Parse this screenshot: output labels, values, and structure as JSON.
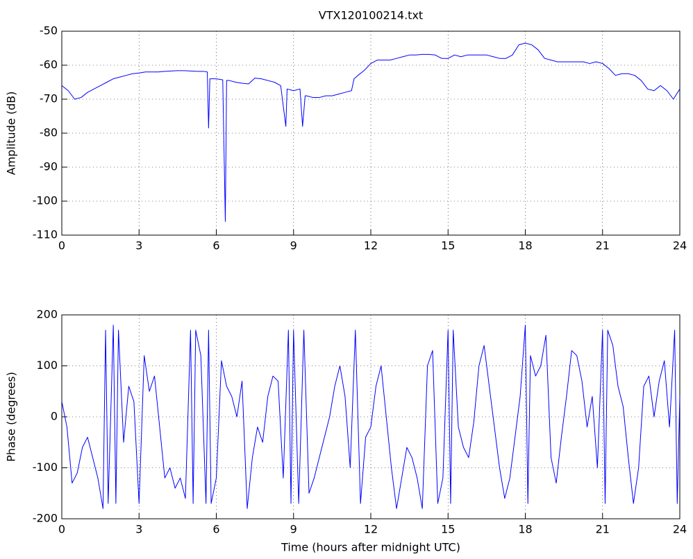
{
  "chart_data": [
    {
      "type": "line",
      "title": "VTX120100214.txt",
      "ylabel": "Amplitude (dB)",
      "xlim": [
        0,
        24
      ],
      "xticks": [
        0,
        3,
        6,
        9,
        12,
        15,
        18,
        21,
        24
      ],
      "ylim": [
        -110,
        -50
      ],
      "yticks": [
        -110,
        -100,
        -90,
        -80,
        -70,
        -60,
        -50
      ],
      "grid": true,
      "series": [
        {
          "color": "#0000ff",
          "x": [
            0,
            0.25,
            0.5,
            0.75,
            1,
            1.25,
            1.5,
            1.75,
            2,
            2.25,
            2.5,
            2.75,
            3,
            3.25,
            3.5,
            3.75,
            4,
            4.25,
            4.5,
            4.75,
            5,
            5.25,
            5.5,
            5.65,
            5.7,
            5.75,
            6,
            6.25,
            6.35,
            6.4,
            6.5,
            6.75,
            7,
            7.25,
            7.5,
            7.75,
            8,
            8.25,
            8.5,
            8.7,
            8.75,
            9,
            9.25,
            9.35,
            9.45,
            9.5,
            9.75,
            10,
            10.25,
            10.5,
            10.75,
            11,
            11.25,
            11.35,
            11.5,
            11.75,
            12,
            12.25,
            12.5,
            12.75,
            13,
            13.25,
            13.5,
            13.75,
            14,
            14.25,
            14.5,
            14.75,
            15,
            15.25,
            15.5,
            15.75,
            16,
            16.25,
            16.5,
            16.75,
            17,
            17.25,
            17.5,
            17.75,
            18,
            18.25,
            18.5,
            18.75,
            19,
            19.25,
            19.5,
            19.75,
            20,
            20.25,
            20.5,
            20.75,
            21,
            21.25,
            21.5,
            21.75,
            22,
            22.25,
            22.5,
            22.75,
            23,
            23.25,
            23.5,
            23.75,
            24
          ],
          "values": [
            -66,
            -67.5,
            -70,
            -69.5,
            -68,
            -67,
            -66,
            -65,
            -64,
            -63.5,
            -63,
            -62.5,
            -62.3,
            -62,
            -62,
            -62,
            -61.8,
            -61.7,
            -61.6,
            -61.6,
            -61.7,
            -61.8,
            -61.8,
            -62,
            -78.5,
            -64,
            -64,
            -64.3,
            -106,
            -64.5,
            -64.5,
            -65,
            -65.3,
            -65.5,
            -63.8,
            -64,
            -64.5,
            -65,
            -66,
            -78,
            -67,
            -67.5,
            -67,
            -78,
            -69,
            -69,
            -69.5,
            -69.5,
            -69,
            -69,
            -68.5,
            -68,
            -67.5,
            -64,
            -63,
            -61.5,
            -59.5,
            -58.5,
            -58.5,
            -58.5,
            -58,
            -57.5,
            -57,
            -57,
            -56.8,
            -56.8,
            -57,
            -58,
            -58,
            -57,
            -57.5,
            -57,
            -57,
            -57,
            -57,
            -57.5,
            -58,
            -58,
            -57,
            -54,
            -53.5,
            -54,
            -55.5,
            -58,
            -58.5,
            -59,
            -59,
            -59,
            -59,
            -59,
            -59.5,
            -59,
            -59.5,
            -61,
            -63,
            -62.5,
            -62.5,
            -63,
            -64.5,
            -67,
            -67.5,
            -66,
            -67.5,
            -70,
            -67
          ]
        }
      ]
    },
    {
      "type": "line",
      "ylabel": "Phase (degrees)",
      "xlabel": "Time (hours after midnight UTC)",
      "xlim": [
        0,
        24
      ],
      "xticks": [
        0,
        3,
        6,
        9,
        12,
        15,
        18,
        21,
        24
      ],
      "ylim": [
        -200,
        200
      ],
      "yticks": [
        -200,
        -100,
        0,
        100,
        200
      ],
      "grid": true,
      "series": [
        {
          "color": "#0000ff",
          "x": [
            0,
            0.2,
            0.4,
            0.6,
            0.8,
            1,
            1.2,
            1.4,
            1.6,
            1.7,
            1.8,
            2,
            2.1,
            2.2,
            2.4,
            2.6,
            2.8,
            3,
            3.2,
            3.4,
            3.6,
            3.8,
            4,
            4.2,
            4.4,
            4.6,
            4.8,
            5,
            5.1,
            5.2,
            5.4,
            5.6,
            5.7,
            5.8,
            6,
            6.2,
            6.4,
            6.6,
            6.8,
            7,
            7.2,
            7.4,
            7.6,
            7.8,
            8,
            8.2,
            8.4,
            8.6,
            8.8,
            8.9,
            9,
            9.2,
            9.4,
            9.6,
            9.8,
            10,
            10.2,
            10.4,
            10.6,
            10.8,
            11,
            11.2,
            11.4,
            11.6,
            11.8,
            12,
            12.2,
            12.4,
            12.6,
            12.8,
            13,
            13.2,
            13.4,
            13.6,
            13.8,
            14,
            14.2,
            14.4,
            14.6,
            14.8,
            15,
            15.1,
            15.2,
            15.4,
            15.6,
            15.8,
            16,
            16.2,
            16.4,
            16.6,
            16.8,
            17,
            17.2,
            17.4,
            17.6,
            17.8,
            18,
            18.1,
            18.2,
            18.4,
            18.6,
            18.8,
            19,
            19.2,
            19.4,
            19.6,
            19.8,
            20,
            20.2,
            20.4,
            20.6,
            20.8,
            21,
            21.1,
            21.2,
            21.4,
            21.6,
            21.8,
            22,
            22.2,
            22.4,
            22.6,
            22.8,
            23,
            23.2,
            23.4,
            23.6,
            23.8,
            23.9,
            24
          ],
          "values": [
            30,
            -20,
            -130,
            -110,
            -60,
            -40,
            -80,
            -120,
            -180,
            170,
            -170,
            180,
            -170,
            170,
            -50,
            60,
            30,
            -170,
            120,
            50,
            80,
            -20,
            -120,
            -100,
            -140,
            -120,
            -160,
            170,
            -170,
            170,
            120,
            -170,
            170,
            -170,
            -120,
            110,
            60,
            40,
            0,
            70,
            -180,
            -80,
            -20,
            -50,
            40,
            80,
            70,
            -120,
            170,
            -170,
            170,
            -170,
            170,
            -150,
            -120,
            -80,
            -40,
            0,
            60,
            100,
            40,
            -100,
            170,
            -170,
            -40,
            -20,
            60,
            100,
            0,
            -100,
            -180,
            -120,
            -60,
            -80,
            -120,
            -180,
            100,
            130,
            -170,
            -120,
            170,
            -170,
            170,
            -20,
            -60,
            -80,
            -10,
            100,
            140,
            60,
            -20,
            -100,
            -160,
            -120,
            -40,
            40,
            180,
            -170,
            120,
            80,
            100,
            160,
            -80,
            -130,
            -40,
            40,
            130,
            120,
            70,
            -20,
            40,
            -100,
            170,
            -170,
            170,
            140,
            60,
            20,
            -80,
            -170,
            -100,
            60,
            80,
            0,
            70,
            110,
            -20,
            170,
            -170,
            40
          ]
        }
      ]
    }
  ]
}
